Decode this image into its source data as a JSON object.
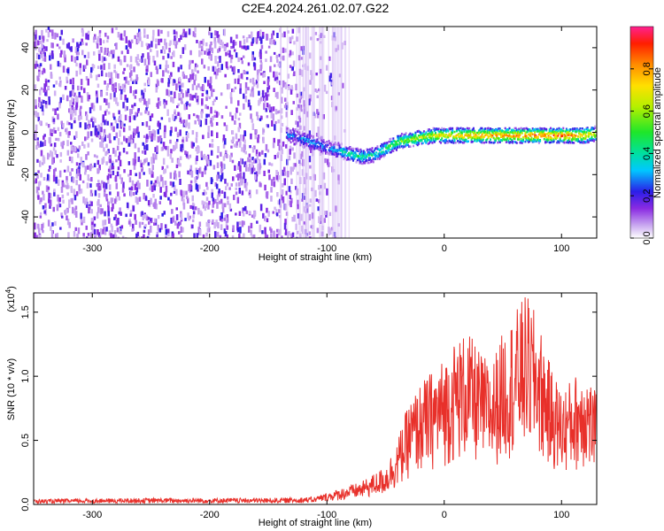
{
  "title": "C2E4.2024.261.02.07.G22",
  "chart_data": [
    {
      "type": "heatmap",
      "xlabel": "Height of straight line (km)",
      "ylabel": "Frequency (Hz)",
      "xlim": [
        -350,
        130
      ],
      "ylim": [
        -50,
        50
      ],
      "xticks": [
        -300,
        -200,
        -100,
        0,
        100
      ],
      "yticks": [
        -40,
        -20,
        0,
        20,
        40
      ],
      "colorbar": {
        "label": "Normalized spectral amplitude",
        "range": [
          0,
          1
        ],
        "ticks": [
          "0.0",
          "0.2",
          "0.4",
          "0.6",
          "0.8"
        ]
      },
      "ridge": {
        "x": [
          -130,
          -120,
          -110,
          -100,
          -90,
          -80,
          -70,
          -60,
          -50,
          -40,
          -30,
          -20,
          -10,
          0,
          20,
          40,
          60,
          80,
          100,
          120,
          130
        ],
        "y": [
          -1,
          -3,
          -5,
          -7,
          -8,
          -10,
          -11,
          -10,
          -7,
          -4,
          -3,
          -2,
          -1,
          -1,
          -1,
          -1,
          -1,
          -1,
          -1,
          -1,
          0
        ],
        "amplitude": [
          0.25,
          0.3,
          0.3,
          0.25,
          0.35,
          0.45,
          0.45,
          0.4,
          0.5,
          0.55,
          0.6,
          0.65,
          0.7,
          0.75,
          0.8,
          0.85,
          0.85,
          0.9,
          0.9,
          0.8,
          0.7
        ]
      },
      "noise_extent": [
        -350,
        -85
      ]
    },
    {
      "type": "line",
      "xlabel": "Height of straight line (km)",
      "ylabel": "SNR (10 * v/v)",
      "multiplier": "(x10",
      "multiplier_exp": "4",
      "multiplier_close": ")",
      "xlim": [
        -350,
        130
      ],
      "ylim": [
        0,
        1.65
      ],
      "xticks": [
        -300,
        -200,
        -100,
        0,
        100
      ],
      "yticks": [
        "0.0",
        "0.5",
        "1.0",
        "1.5"
      ],
      "color": "#e8302a",
      "envelope": {
        "x": [
          -350,
          -250,
          -150,
          -110,
          -90,
          -70,
          -50,
          -40,
          -30,
          -20,
          -10,
          0,
          10,
          20,
          30,
          40,
          50,
          60,
          70,
          80,
          90,
          100,
          110,
          120,
          130
        ],
        "y": [
          0.04,
          0.05,
          0.05,
          0.06,
          0.12,
          0.18,
          0.3,
          0.5,
          0.8,
          0.95,
          1.05,
          1.15,
          1.3,
          1.35,
          1.2,
          1.1,
          1.35,
          1.5,
          1.65,
          1.45,
          1.1,
          0.9,
          1.0,
          1.1,
          0.85
        ]
      }
    }
  ]
}
